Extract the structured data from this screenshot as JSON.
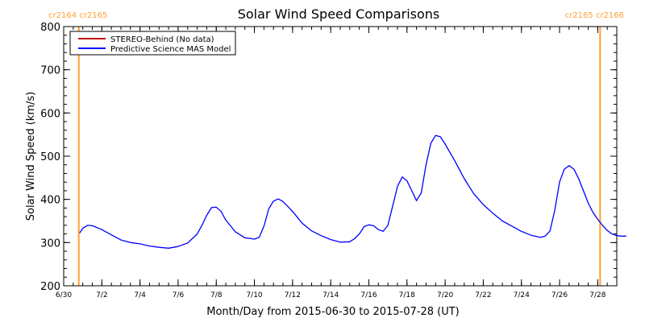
{
  "chart_data": {
    "type": "line",
    "title": "Solar Wind Speed Comparisons",
    "xlabel": "Month/Day from 2015-06-30 to 2015-07-28 (UT)",
    "ylabel": "Solar Wind Speed (km/s)",
    "x_range": [
      "2015-06-30",
      "2015-07-29"
    ],
    "ylim": [
      200,
      800
    ],
    "y_ticks": [
      {
        "value": 200,
        "label": "200"
      },
      {
        "value": 300,
        "label": "300"
      },
      {
        "value": 400,
        "label": "400"
      },
      {
        "value": 500,
        "label": "500"
      },
      {
        "value": 600,
        "label": "600"
      },
      {
        "value": 700,
        "label": "700"
      },
      {
        "value": 800,
        "label": "800"
      }
    ],
    "x_ticks": [
      {
        "date": "2015-06-30",
        "label": "6/30"
      },
      {
        "date": "2015-07-02",
        "label": "7/2"
      },
      {
        "date": "2015-07-04",
        "label": "7/4"
      },
      {
        "date": "2015-07-06",
        "label": "7/6"
      },
      {
        "date": "2015-07-08",
        "label": "7/8"
      },
      {
        "date": "2015-07-10",
        "label": "7/10"
      },
      {
        "date": "2015-07-12",
        "label": "7/12"
      },
      {
        "date": "2015-07-14",
        "label": "7/14"
      },
      {
        "date": "2015-07-16",
        "label": "7/16"
      },
      {
        "date": "2015-07-18",
        "label": "7/18"
      },
      {
        "date": "2015-07-20",
        "label": "7/20"
      },
      {
        "date": "2015-07-22",
        "label": "7/22"
      },
      {
        "date": "2015-07-24",
        "label": "7/24"
      },
      {
        "date": "2015-07-26",
        "label": "7/26"
      },
      {
        "date": "2015-07-28",
        "label": "7/28"
      }
    ],
    "legend": {
      "placement": "top-left",
      "entries": [
        {
          "label": "STEREO-Behind (No data)",
          "color": "#c00000"
        },
        {
          "label": "Predictive Science MAS Model",
          "color": "#0000ff"
        }
      ]
    },
    "carrington_markers": [
      {
        "date": "2015-06-30 19:00",
        "label": "cr2164 cr2165",
        "color": "#ffa030"
      },
      {
        "date": "2015-07-28 03:00",
        "label": "cr2165 cr2166",
        "color": "#ffa030"
      }
    ],
    "series": [
      {
        "name": "Predictive Science MAS Model",
        "color": "#0000ff",
        "points": [
          [
            "2015-06-30 20:00",
            322
          ],
          [
            "2015-07-01 00:00",
            333
          ],
          [
            "2015-07-01 06:00",
            340
          ],
          [
            "2015-07-01 12:00",
            339
          ],
          [
            "2015-07-02 00:00",
            330
          ],
          [
            "2015-07-02 12:00",
            318
          ],
          [
            "2015-07-03 00:00",
            306
          ],
          [
            "2015-07-03 12:00",
            300
          ],
          [
            "2015-07-04 00:00",
            297
          ],
          [
            "2015-07-04 12:00",
            292
          ],
          [
            "2015-07-05 00:00",
            289
          ],
          [
            "2015-07-05 12:00",
            287
          ],
          [
            "2015-07-06 00:00",
            291
          ],
          [
            "2015-07-06 12:00",
            299
          ],
          [
            "2015-07-07 00:00",
            320
          ],
          [
            "2015-07-07 06:00",
            340
          ],
          [
            "2015-07-07 12:00",
            363
          ],
          [
            "2015-07-07 18:00",
            381
          ],
          [
            "2015-07-08 00:00",
            382
          ],
          [
            "2015-07-08 06:00",
            372
          ],
          [
            "2015-07-08 12:00",
            352
          ],
          [
            "2015-07-09 00:00",
            325
          ],
          [
            "2015-07-09 12:00",
            311
          ],
          [
            "2015-07-10 00:00",
            308
          ],
          [
            "2015-07-10 06:00",
            312
          ],
          [
            "2015-07-10 12:00",
            338
          ],
          [
            "2015-07-10 18:00",
            378
          ],
          [
            "2015-07-11 00:00",
            396
          ],
          [
            "2015-07-11 06:00",
            401
          ],
          [
            "2015-07-11 12:00",
            395
          ],
          [
            "2015-07-12 00:00",
            372
          ],
          [
            "2015-07-12 12:00",
            345
          ],
          [
            "2015-07-13 00:00",
            327
          ],
          [
            "2015-07-13 12:00",
            316
          ],
          [
            "2015-07-14 00:00",
            307
          ],
          [
            "2015-07-14 12:00",
            301
          ],
          [
            "2015-07-15 00:00",
            302
          ],
          [
            "2015-07-15 06:00",
            309
          ],
          [
            "2015-07-15 12:00",
            320
          ],
          [
            "2015-07-15 18:00",
            337
          ],
          [
            "2015-07-16 00:00",
            341
          ],
          [
            "2015-07-16 06:00",
            339
          ],
          [
            "2015-07-16 12:00",
            330
          ],
          [
            "2015-07-16 18:00",
            326
          ],
          [
            "2015-07-17 00:00",
            340
          ],
          [
            "2015-07-17 06:00",
            385
          ],
          [
            "2015-07-17 12:00",
            430
          ],
          [
            "2015-07-17 18:00",
            452
          ],
          [
            "2015-07-18 00:00",
            443
          ],
          [
            "2015-07-18 06:00",
            420
          ],
          [
            "2015-07-18 12:00",
            397
          ],
          [
            "2015-07-18 18:00",
            415
          ],
          [
            "2015-07-19 00:00",
            480
          ],
          [
            "2015-07-19 06:00",
            530
          ],
          [
            "2015-07-19 12:00",
            548
          ],
          [
            "2015-07-19 18:00",
            545
          ],
          [
            "2015-07-20 00:00",
            528
          ],
          [
            "2015-07-20 12:00",
            490
          ],
          [
            "2015-07-21 00:00",
            448
          ],
          [
            "2015-07-21 12:00",
            413
          ],
          [
            "2015-07-22 00:00",
            388
          ],
          [
            "2015-07-22 12:00",
            368
          ],
          [
            "2015-07-23 00:00",
            350
          ],
          [
            "2015-07-23 12:00",
            338
          ],
          [
            "2015-07-24 00:00",
            326
          ],
          [
            "2015-07-24 12:00",
            317
          ],
          [
            "2015-07-25 00:00",
            312
          ],
          [
            "2015-07-25 06:00",
            315
          ],
          [
            "2015-07-25 12:00",
            327
          ],
          [
            "2015-07-25 18:00",
            375
          ],
          [
            "2015-07-26 00:00",
            440
          ],
          [
            "2015-07-26 06:00",
            470
          ],
          [
            "2015-07-26 12:00",
            478
          ],
          [
            "2015-07-26 18:00",
            470
          ],
          [
            "2015-07-27 00:00",
            448
          ],
          [
            "2015-07-27 06:00",
            420
          ],
          [
            "2015-07-27 12:00",
            392
          ],
          [
            "2015-07-27 18:00",
            370
          ],
          [
            "2015-07-28 00:00",
            354
          ],
          [
            "2015-07-28 06:00",
            340
          ],
          [
            "2015-07-28 12:00",
            328
          ],
          [
            "2015-07-28 18:00",
            320
          ],
          [
            "2015-07-29 00:00",
            316
          ],
          [
            "2015-07-29 06:00",
            315
          ],
          [
            "2015-07-29 12:00",
            315
          ]
        ]
      }
    ]
  }
}
